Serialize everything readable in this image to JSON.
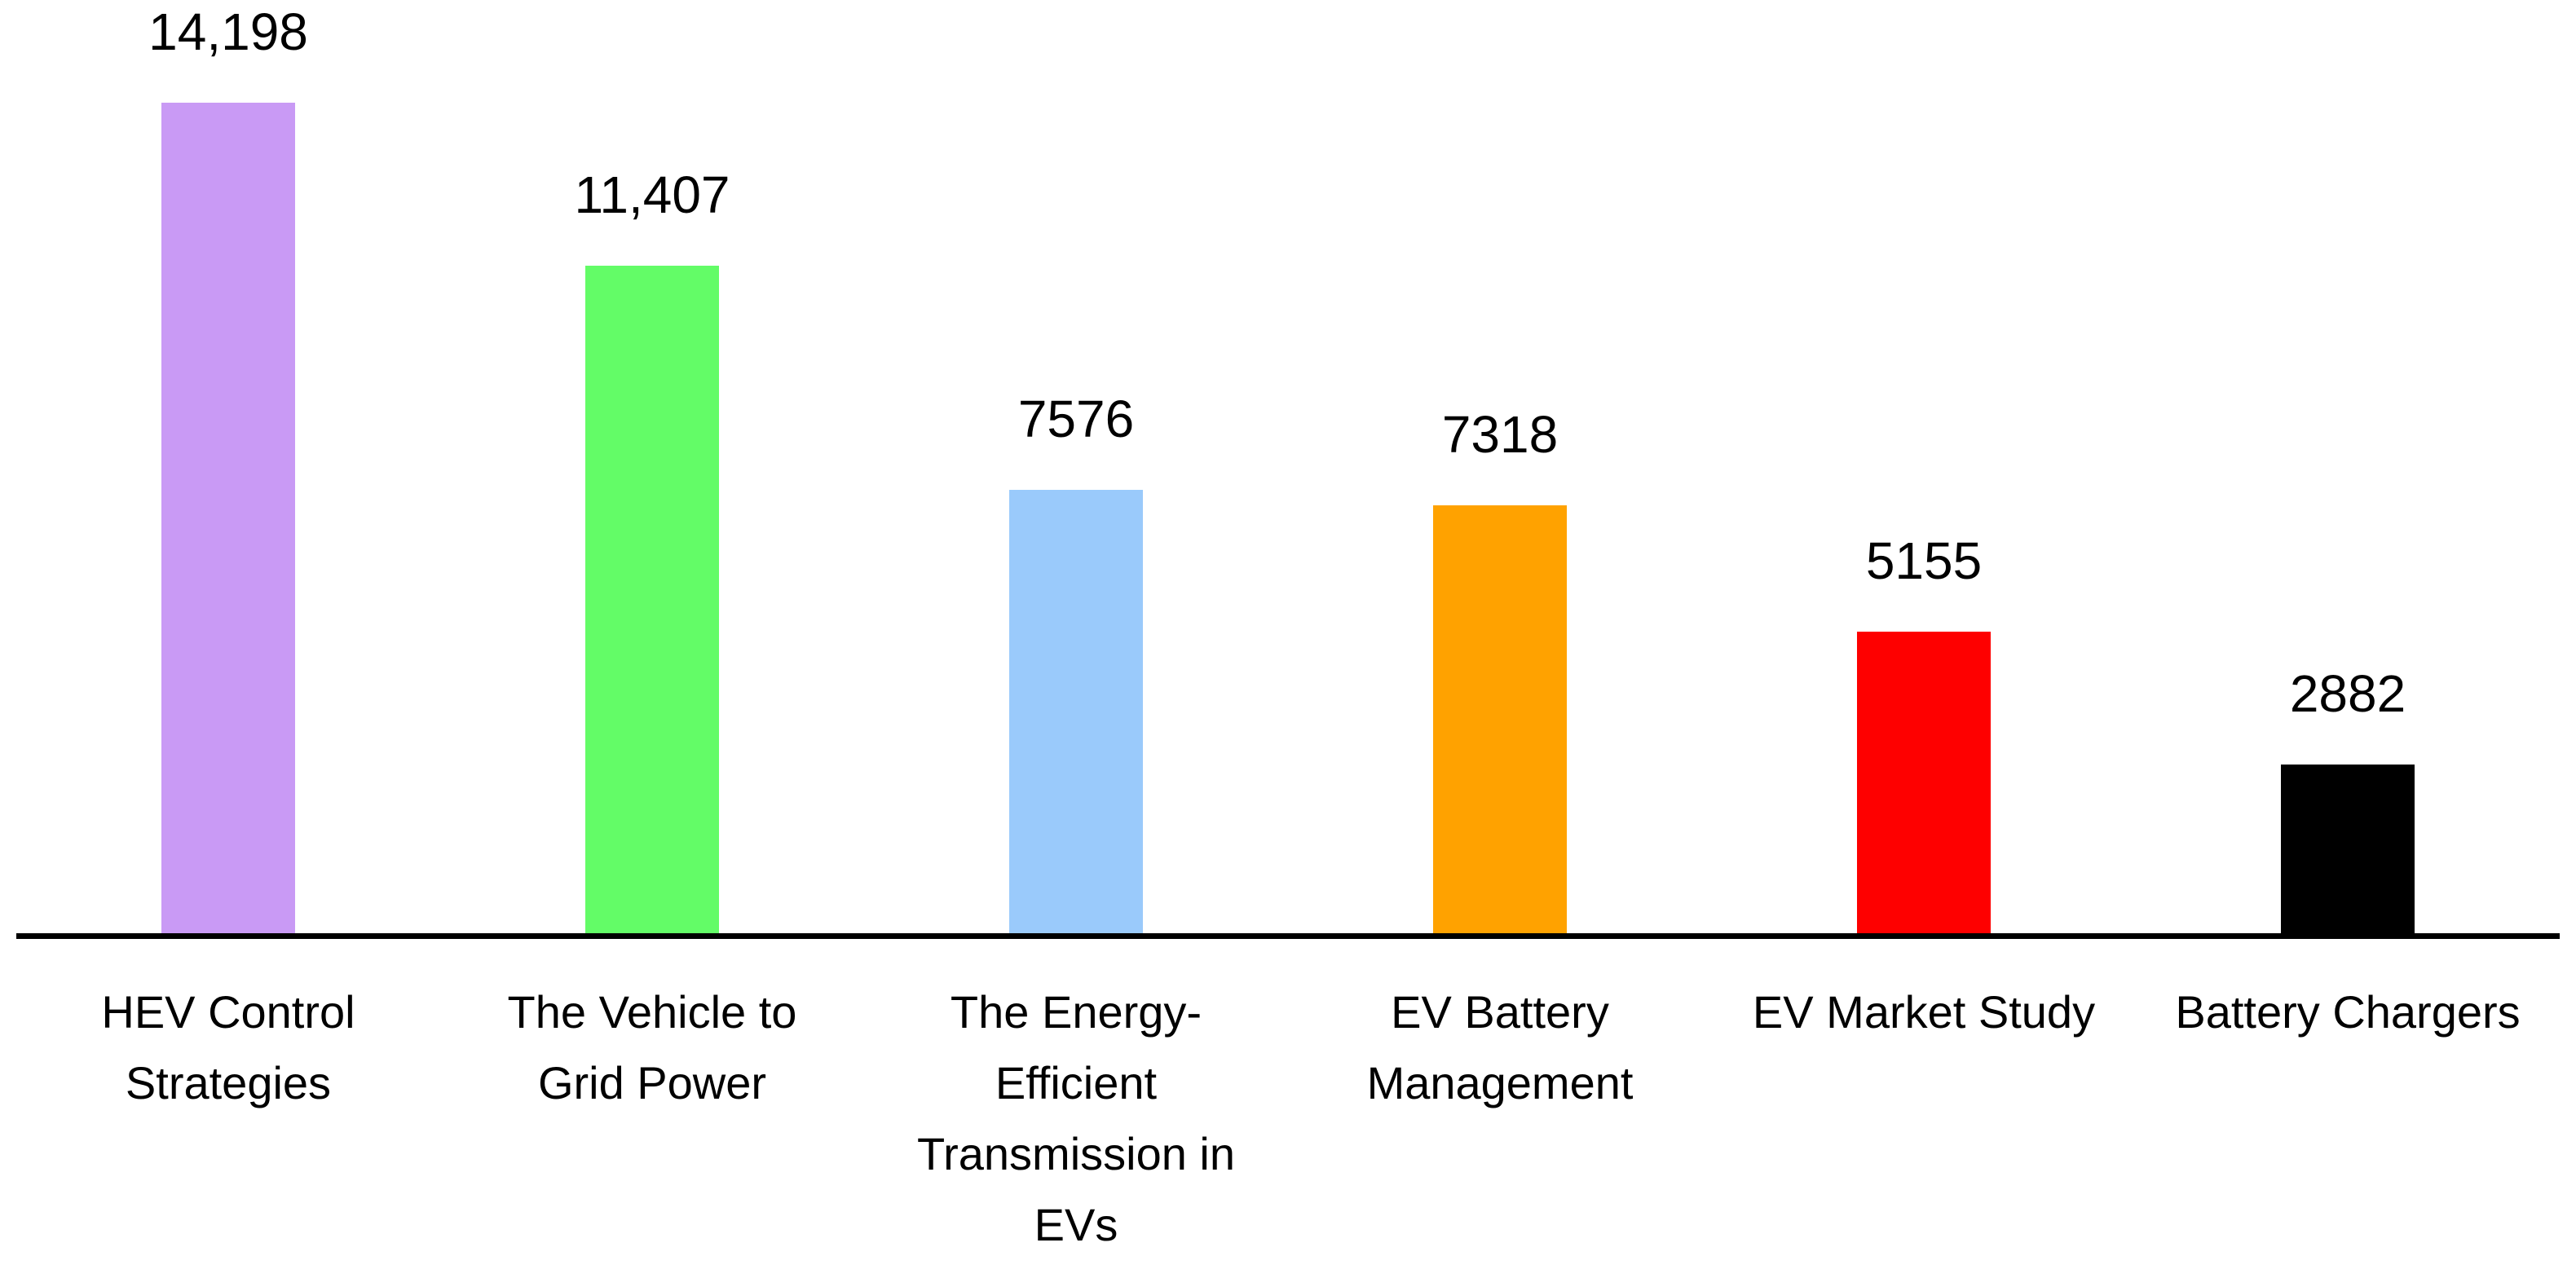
{
  "chart_data": {
    "type": "bar",
    "title": "",
    "categories": [
      "HEV Control Strategies",
      "The Vehicle to Grid Power",
      "The Energy-Efficient Transmission in EVs",
      "EV Battery Management",
      "EV Market Study",
      "Battery Chargers"
    ],
    "values": [
      14198,
      11407,
      7576,
      7318,
      5155,
      2882
    ],
    "value_labels": [
      "14,198",
      "11,407",
      "7576",
      "7318",
      "5155",
      "2882"
    ],
    "colors": [
      "#C99AF5",
      "#63FC67",
      "#9ACAFB",
      "#FFA200",
      "#FE0000",
      "#000000"
    ],
    "xlabel": "",
    "ylabel": "",
    "ylim": [
      0,
      14198
    ],
    "gridlines": false,
    "legend": "none",
    "data_labels": "above bars",
    "axis_line_color": "#000000",
    "background_color": "#FFFFFF",
    "text_color": "#000000"
  }
}
